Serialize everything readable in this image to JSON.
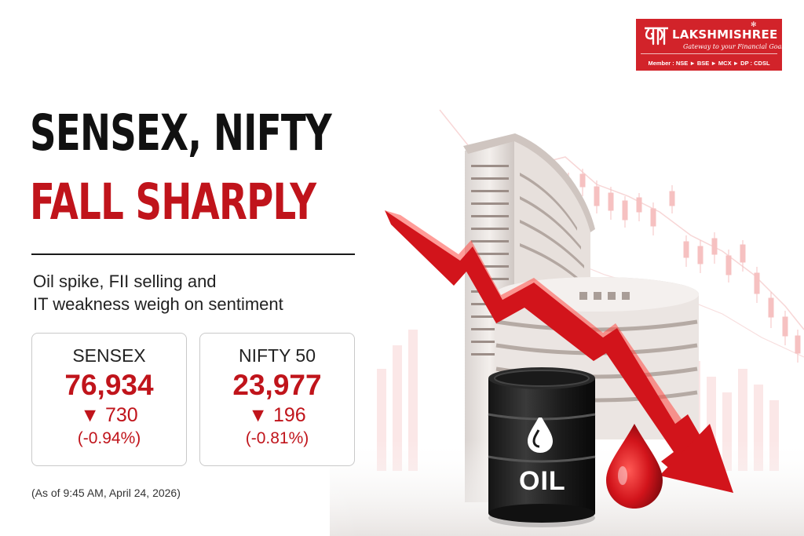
{
  "headline": {
    "line1": "SENSEX, NIFTY",
    "line2": "FALL SHARPLY"
  },
  "subtitle": {
    "line1": "Oil spike, FII selling and",
    "line2": "IT weakness weigh on sentiment"
  },
  "indices": [
    {
      "name": "SENSEX",
      "value": "76,934",
      "change": "▼ 730",
      "percent": "(-0.94%)"
    },
    {
      "name": "NIFTY 50",
      "value": "23,977",
      "change": "▼ 196",
      "percent": "(-0.81%)"
    }
  ],
  "timestamp": "(As of 9:45 AM, April 24, 2026)",
  "brand": {
    "name": "LAKSHMISHREE",
    "tagline": "Gateway to your Financial Goals",
    "member_line": "Member : NSE ► BSE ► MCX ► DP : CDSL",
    "color": "#d2232a"
  },
  "illustration": {
    "barrel_label": "OIL",
    "accent_color": "#c0141b"
  }
}
